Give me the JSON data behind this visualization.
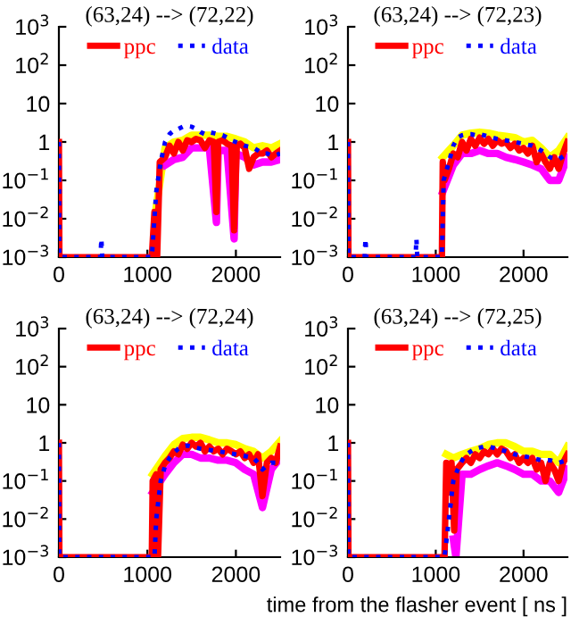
{
  "chart_data": [
    {
      "type": "line",
      "title": "(63,24) --> (72,22)",
      "log": "y",
      "legend": "top",
      "xlim": [
        0,
        2500
      ],
      "ylim": [
        0.001,
        1000
      ],
      "xticks": [
        0,
        1000,
        2000
      ],
      "yticks": [
        {
          "value": 0.001,
          "label": "10$^{−3}$"
        },
        {
          "value": 0.01,
          "label": "10$^{−2}$"
        },
        {
          "value": 0.1,
          "label": "10$^{−1}$"
        },
        1,
        10,
        {
          "value": 100,
          "label": "10$^{2}$"
        },
        {
          "value": 1000,
          "label": "10$^{3}$"
        }
      ],
      "series": [
        {
          "color": "#ffff00",
          "x": [
            1100,
            1200,
            1300,
            1400,
            1500,
            1600,
            1700,
            1800,
            1900,
            2000,
            2100,
            2200,
            2300,
            2400,
            2500
          ],
          "values": [
            0.02,
            0.7,
            1.0,
            1.1,
            1.5,
            1.5,
            1.5,
            1.4,
            1.4,
            1.2,
            1.0,
            0.7,
            0.8,
            0.7,
            0.9
          ]
        },
        {
          "color": "#ff00ff",
          "x": [
            1200,
            1300,
            1400,
            1500,
            1600,
            1700,
            1780,
            1800,
            1900,
            1980,
            2000,
            2100,
            2200,
            2300,
            2400,
            2500
          ],
          "values": [
            0.25,
            0.35,
            0.4,
            0.7,
            0.7,
            0.7,
            0.008,
            0.6,
            0.6,
            0.003,
            0.5,
            0.4,
            0.25,
            0.3,
            0.3,
            0.35
          ]
        },
        {
          "name": "ppc",
          "color": "#ff0000",
          "x": [
            0,
            5,
            1050,
            1080,
            1110,
            1140,
            1200,
            1250,
            1300,
            1350,
            1400,
            1450,
            1500,
            1550,
            1600,
            1650,
            1700,
            1750,
            1780,
            1800,
            1850,
            1900,
            1950,
            1980,
            2010,
            2050,
            2100,
            2150,
            2200,
            2250,
            2300,
            2350,
            2400,
            2450,
            2500
          ],
          "values": [
            1,
            0.001,
            0.001,
            0.015,
            0.001,
            0.3,
            0.4,
            0.8,
            0.5,
            1.0,
            0.6,
            1.1,
            1.0,
            1.2,
            1.1,
            0.7,
            1.1,
            1.0,
            0.015,
            1.0,
            1.1,
            0.9,
            0.8,
            0.005,
            0.8,
            0.9,
            0.7,
            0.2,
            0.4,
            0.5,
            0.5,
            0.6,
            0.4,
            0.5,
            0.6
          ],
          "line_style": "solid"
        },
        {
          "name": "data",
          "color": "#0000ff",
          "x": [
            0,
            5,
            470,
            480,
            490,
            1050,
            1100,
            1150,
            1200,
            1250,
            1300,
            1350,
            1400,
            1450,
            1500,
            1550,
            1600,
            1650,
            1700,
            1750,
            1800,
            1850,
            1900,
            1950,
            2000,
            2050,
            2100,
            2150,
            2200,
            2250,
            2300,
            2350,
            2400,
            2450,
            2500
          ],
          "values": [
            1,
            0.001,
            0.001,
            0.003,
            0.001,
            0.001,
            0.05,
            0.3,
            1.0,
            1.6,
            2.0,
            2.2,
            2.5,
            2.6,
            2.5,
            2.2,
            1.8,
            1.6,
            1.8,
            1.7,
            1.6,
            1.5,
            1.3,
            1.1,
            1.0,
            0.9,
            0.8,
            0.75,
            0.7,
            0.6,
            0.5,
            0.5,
            0.45,
            0.45,
            0.5
          ],
          "line_style": "dotted"
        }
      ]
    },
    {
      "type": "line",
      "title": "(63,24) --> (72,23)",
      "log": "y",
      "legend": "top",
      "xlim": [
        0,
        2500
      ],
      "ylim": [
        0.001,
        1000
      ],
      "xticks": [
        0,
        1000,
        2000
      ],
      "yticks": [
        {
          "value": 0.001,
          "label": "10$^{−3}$"
        },
        {
          "value": 0.01,
          "label": "10$^{−2}$"
        },
        {
          "value": 0.1,
          "label": "10$^{−1}$"
        },
        1,
        10,
        {
          "value": 100,
          "label": "10$^{2}$"
        },
        {
          "value": 1000,
          "label": "10$^{3}$"
        }
      ],
      "series": [
        {
          "color": "#ffff00",
          "x": [
            1080,
            1200,
            1300,
            1400,
            1500,
            1600,
            1700,
            1800,
            1900,
            2000,
            2100,
            2200,
            2300,
            2400,
            2500
          ],
          "values": [
            0.4,
            0.8,
            1.5,
            1.7,
            1.8,
            1.7,
            1.5,
            1.4,
            1.3,
            1.0,
            1.1,
            0.7,
            0.4,
            0.6,
            1.3
          ]
        },
        {
          "color": "#ff00ff",
          "x": [
            1080,
            1200,
            1300,
            1400,
            1500,
            1600,
            1700,
            1800,
            1900,
            2000,
            2100,
            2200,
            2300,
            2400,
            2500
          ],
          "values": [
            0.05,
            0.25,
            0.5,
            0.5,
            0.6,
            0.5,
            0.5,
            0.4,
            0.35,
            0.3,
            0.25,
            0.2,
            0.1,
            0.1,
            0.4
          ]
        },
        {
          "name": "ppc",
          "color": "#ff0000",
          "x": [
            0,
            5,
            1070,
            1080,
            1100,
            1150,
            1200,
            1250,
            1300,
            1350,
            1400,
            1450,
            1500,
            1550,
            1600,
            1650,
            1700,
            1750,
            1800,
            1850,
            1900,
            1950,
            2000,
            2050,
            2100,
            2150,
            2200,
            2250,
            2300,
            2350,
            2400,
            2450,
            2500
          ],
          "values": [
            1,
            0.001,
            0.001,
            0.3,
            0.1,
            0.2,
            0.5,
            0.4,
            1.0,
            0.6,
            1.2,
            0.8,
            1.3,
            0.9,
            1.2,
            0.8,
            1.1,
            0.9,
            1.0,
            0.7,
            0.9,
            0.6,
            0.7,
            0.5,
            0.8,
            0.3,
            0.5,
            0.3,
            0.2,
            0.4,
            0.2,
            0.5,
            1.0
          ],
          "line_style": "solid"
        },
        {
          "name": "data",
          "color": "#0000ff",
          "x": [
            0,
            5,
            190,
            200,
            210,
            770,
            780,
            790,
            1070,
            1090,
            1150,
            1200,
            1250,
            1300,
            1350,
            1400,
            1450,
            1500,
            1600,
            1700,
            1800,
            1900,
            2000,
            2100,
            2200,
            2300,
            2400,
            2500
          ],
          "values": [
            1,
            0.001,
            0.001,
            0.003,
            0.001,
            0.001,
            0.003,
            0.001,
            0.001,
            0.1,
            0.3,
            0.8,
            1.3,
            1.5,
            1.6,
            1.6,
            1.5,
            1.6,
            1.4,
            1.2,
            1.1,
            1.0,
            0.9,
            0.8,
            0.6,
            0.4,
            0.35,
            0.5
          ],
          "line_style": "dotted"
        }
      ]
    },
    {
      "type": "line",
      "title": "(63,24) --> (72,24)",
      "log": "y",
      "legend": "top",
      "xlim": [
        0,
        2500
      ],
      "ylim": [
        0.001,
        1000
      ],
      "xticks": [
        0,
        1000,
        2000
      ],
      "yticks": [
        {
          "value": 0.001,
          "label": "10$^{−3}$"
        },
        {
          "value": 0.01,
          "label": "10$^{−2}$"
        },
        {
          "value": 0.1,
          "label": "10$^{−1}$"
        },
        1,
        10,
        {
          "value": 100,
          "label": "10$^{2}$"
        },
        {
          "value": 1000,
          "label": "10$^{3}$"
        }
      ],
      "series": [
        {
          "color": "#ffff00",
          "x": [
            1060,
            1200,
            1300,
            1400,
            1500,
            1600,
            1700,
            1800,
            1900,
            2000,
            2100,
            2200,
            2300,
            2400,
            2500
          ],
          "values": [
            0.15,
            0.45,
            0.9,
            1.3,
            1.4,
            1.4,
            1.2,
            1.0,
            1.0,
            0.9,
            0.7,
            0.6,
            0.4,
            0.6,
            1.1
          ]
        },
        {
          "color": "#ff00ff",
          "x": [
            1060,
            1200,
            1300,
            1400,
            1500,
            1600,
            1700,
            1800,
            1900,
            2000,
            2100,
            2200,
            2300,
            2400,
            2500
          ],
          "values": [
            0.05,
            0.15,
            0.3,
            0.5,
            0.5,
            0.4,
            0.4,
            0.35,
            0.35,
            0.3,
            0.2,
            0.15,
            0.02,
            0.2,
            0.4
          ]
        },
        {
          "name": "ppc",
          "color": "#ff0000",
          "x": [
            0,
            5,
            1050,
            1060,
            1100,
            1120,
            1150,
            1200,
            1250,
            1300,
            1350,
            1400,
            1450,
            1500,
            1550,
            1600,
            1650,
            1700,
            1750,
            1800,
            1850,
            1900,
            1950,
            2000,
            2050,
            2100,
            2150,
            2200,
            2250,
            2300,
            2350,
            2400,
            2450,
            2500
          ],
          "values": [
            1,
            0.001,
            0.001,
            0.1,
            0.15,
            0.001,
            0.2,
            0.3,
            0.4,
            0.6,
            0.5,
            0.9,
            0.7,
            1.0,
            0.8,
            1.0,
            0.6,
            0.8,
            0.6,
            0.7,
            0.5,
            0.7,
            0.6,
            0.5,
            0.6,
            0.4,
            0.5,
            0.3,
            0.5,
            0.04,
            0.3,
            0.4,
            0.3,
            0.8
          ],
          "line_style": "solid"
        },
        {
          "name": "data",
          "color": "#0000ff",
          "x": [
            0,
            5,
            1080,
            1100,
            1150,
            1200,
            1250,
            1300,
            1350,
            1400,
            1450,
            1500,
            1550,
            1600,
            1700,
            1800,
            1900,
            2000,
            2100,
            2200,
            2250,
            2300,
            2350,
            2400,
            2450,
            2500
          ],
          "values": [
            1,
            0.001,
            0.001,
            0.01,
            0.1,
            0.25,
            0.4,
            0.55,
            0.7,
            0.8,
            0.85,
            0.8,
            0.75,
            0.7,
            0.65,
            0.6,
            0.55,
            0.5,
            0.45,
            0.4,
            0.3,
            0.2,
            0.25,
            0.3,
            0.3,
            0.35
          ],
          "line_style": "dotted"
        }
      ]
    },
    {
      "type": "line",
      "title": "(63,24) --> (72,25)",
      "xlabel": "time from the flasher event [ ns ]",
      "log": "y",
      "legend": "top",
      "xlim": [
        0,
        2500
      ],
      "ylim": [
        0.001,
        1000
      ],
      "xticks": [
        0,
        1000,
        2000
      ],
      "yticks": [
        {
          "value": 0.001,
          "label": "10$^{−3}$"
        },
        {
          "value": 0.01,
          "label": "10$^{−2}$"
        },
        {
          "value": 0.1,
          "label": "10$^{−1}$"
        },
        1,
        10,
        {
          "value": 100,
          "label": "10$^{2}$"
        },
        {
          "value": 1000,
          "label": "10$^{3}$"
        }
      ],
      "series": [
        {
          "color": "#ffff00",
          "x": [
            1120,
            1200,
            1300,
            1400,
            1500,
            1600,
            1700,
            1800,
            1900,
            2000,
            2100,
            2200,
            2300,
            2400,
            2500
          ],
          "values": [
            0.5,
            0.4,
            0.5,
            0.6,
            0.7,
            0.9,
            1.0,
            1.0,
            0.8,
            0.6,
            0.6,
            0.5,
            0.5,
            0.3,
            0.8
          ]
        },
        {
          "color": "#ff00ff",
          "x": [
            1200,
            1230,
            1300,
            1400,
            1500,
            1600,
            1700,
            1800,
            1900,
            2000,
            2100,
            2200,
            2300,
            2400,
            2500
          ],
          "values": [
            0.003,
            0.001,
            0.15,
            0.15,
            0.2,
            0.25,
            0.3,
            0.25,
            0.2,
            0.15,
            0.15,
            0.1,
            0.1,
            0.05,
            0.2
          ]
        },
        {
          "name": "ppc",
          "color": "#ff0000",
          "x": [
            0,
            5,
            1100,
            1120,
            1150,
            1180,
            1210,
            1240,
            1300,
            1350,
            1400,
            1450,
            1500,
            1550,
            1600,
            1650,
            1700,
            1750,
            1800,
            1850,
            1900,
            1950,
            2000,
            2050,
            2100,
            2150,
            2200,
            2250,
            2300,
            2350,
            2400,
            2450,
            2500
          ],
          "values": [
            1,
            0.001,
            0.001,
            0.3,
            0.05,
            0.3,
            0.005,
            0.2,
            0.3,
            0.4,
            0.3,
            0.5,
            0.4,
            0.6,
            0.5,
            0.7,
            0.5,
            0.7,
            0.6,
            0.4,
            0.5,
            0.3,
            0.4,
            0.3,
            0.4,
            0.2,
            0.3,
            0.1,
            0.3,
            0.2,
            0.1,
            0.3,
            0.5
          ],
          "line_style": "solid"
        },
        {
          "name": "data",
          "color": "#0000ff",
          "x": [
            0,
            5,
            1100,
            1150,
            1200,
            1250,
            1300,
            1350,
            1400,
            1450,
            1500,
            1550,
            1600,
            1650,
            1700,
            1800,
            1900,
            2000,
            2100,
            2200,
            2300,
            2400,
            2500
          ],
          "values": [
            1,
            0.001,
            0.001,
            0.01,
            0.1,
            0.2,
            0.35,
            0.5,
            0.6,
            0.7,
            0.75,
            0.8,
            0.8,
            0.75,
            0.7,
            0.6,
            0.5,
            0.45,
            0.4,
            0.35,
            0.35,
            0.3,
            0.35
          ],
          "line_style": "dotted"
        }
      ]
    }
  ]
}
